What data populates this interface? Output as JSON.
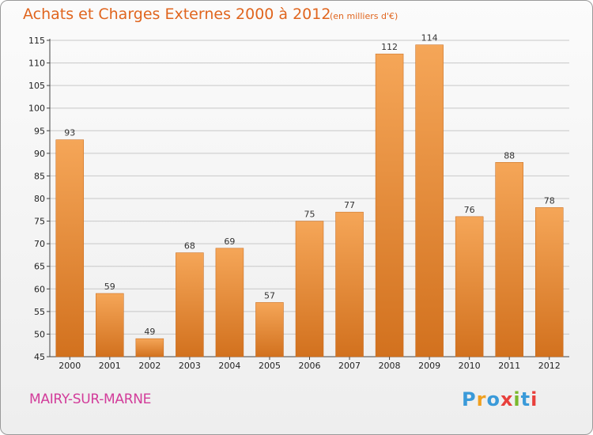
{
  "title": "Achats et Charges Externes 2000 à 2012",
  "unit_note": "(en milliers d'€)",
  "city": "MAIRY-SUR-MARNE",
  "logo": {
    "text": "Proxiti",
    "letter_colors": [
      "#3a9ad9",
      "#f0a020",
      "#3a9ad9",
      "#e8403c",
      "#7ab82c",
      "#3a9ad9",
      "#e8403c"
    ]
  },
  "colors": {
    "title": "#e0651e",
    "city": "#d23c9a",
    "bar_light": "#f5a658",
    "bar_dark": "#d2711e",
    "grid": "#c8c8c8"
  },
  "chart_data": {
    "type": "bar",
    "title": "Achats et Charges Externes 2000 à 2012",
    "subtitle": "(en milliers d'€)",
    "categories": [
      "2000",
      "2001",
      "2002",
      "2003",
      "2004",
      "2005",
      "2006",
      "2007",
      "2008",
      "2009",
      "2010",
      "2011",
      "2012"
    ],
    "values": [
      93,
      59,
      49,
      68,
      69,
      57,
      75,
      77,
      112,
      114,
      76,
      88,
      78
    ],
    "ylim": [
      45,
      115
    ],
    "yticks": [
      45,
      50,
      55,
      60,
      65,
      70,
      75,
      80,
      85,
      90,
      95,
      100,
      105,
      110,
      115
    ],
    "grid": true,
    "xlabel": "",
    "ylabel": ""
  }
}
